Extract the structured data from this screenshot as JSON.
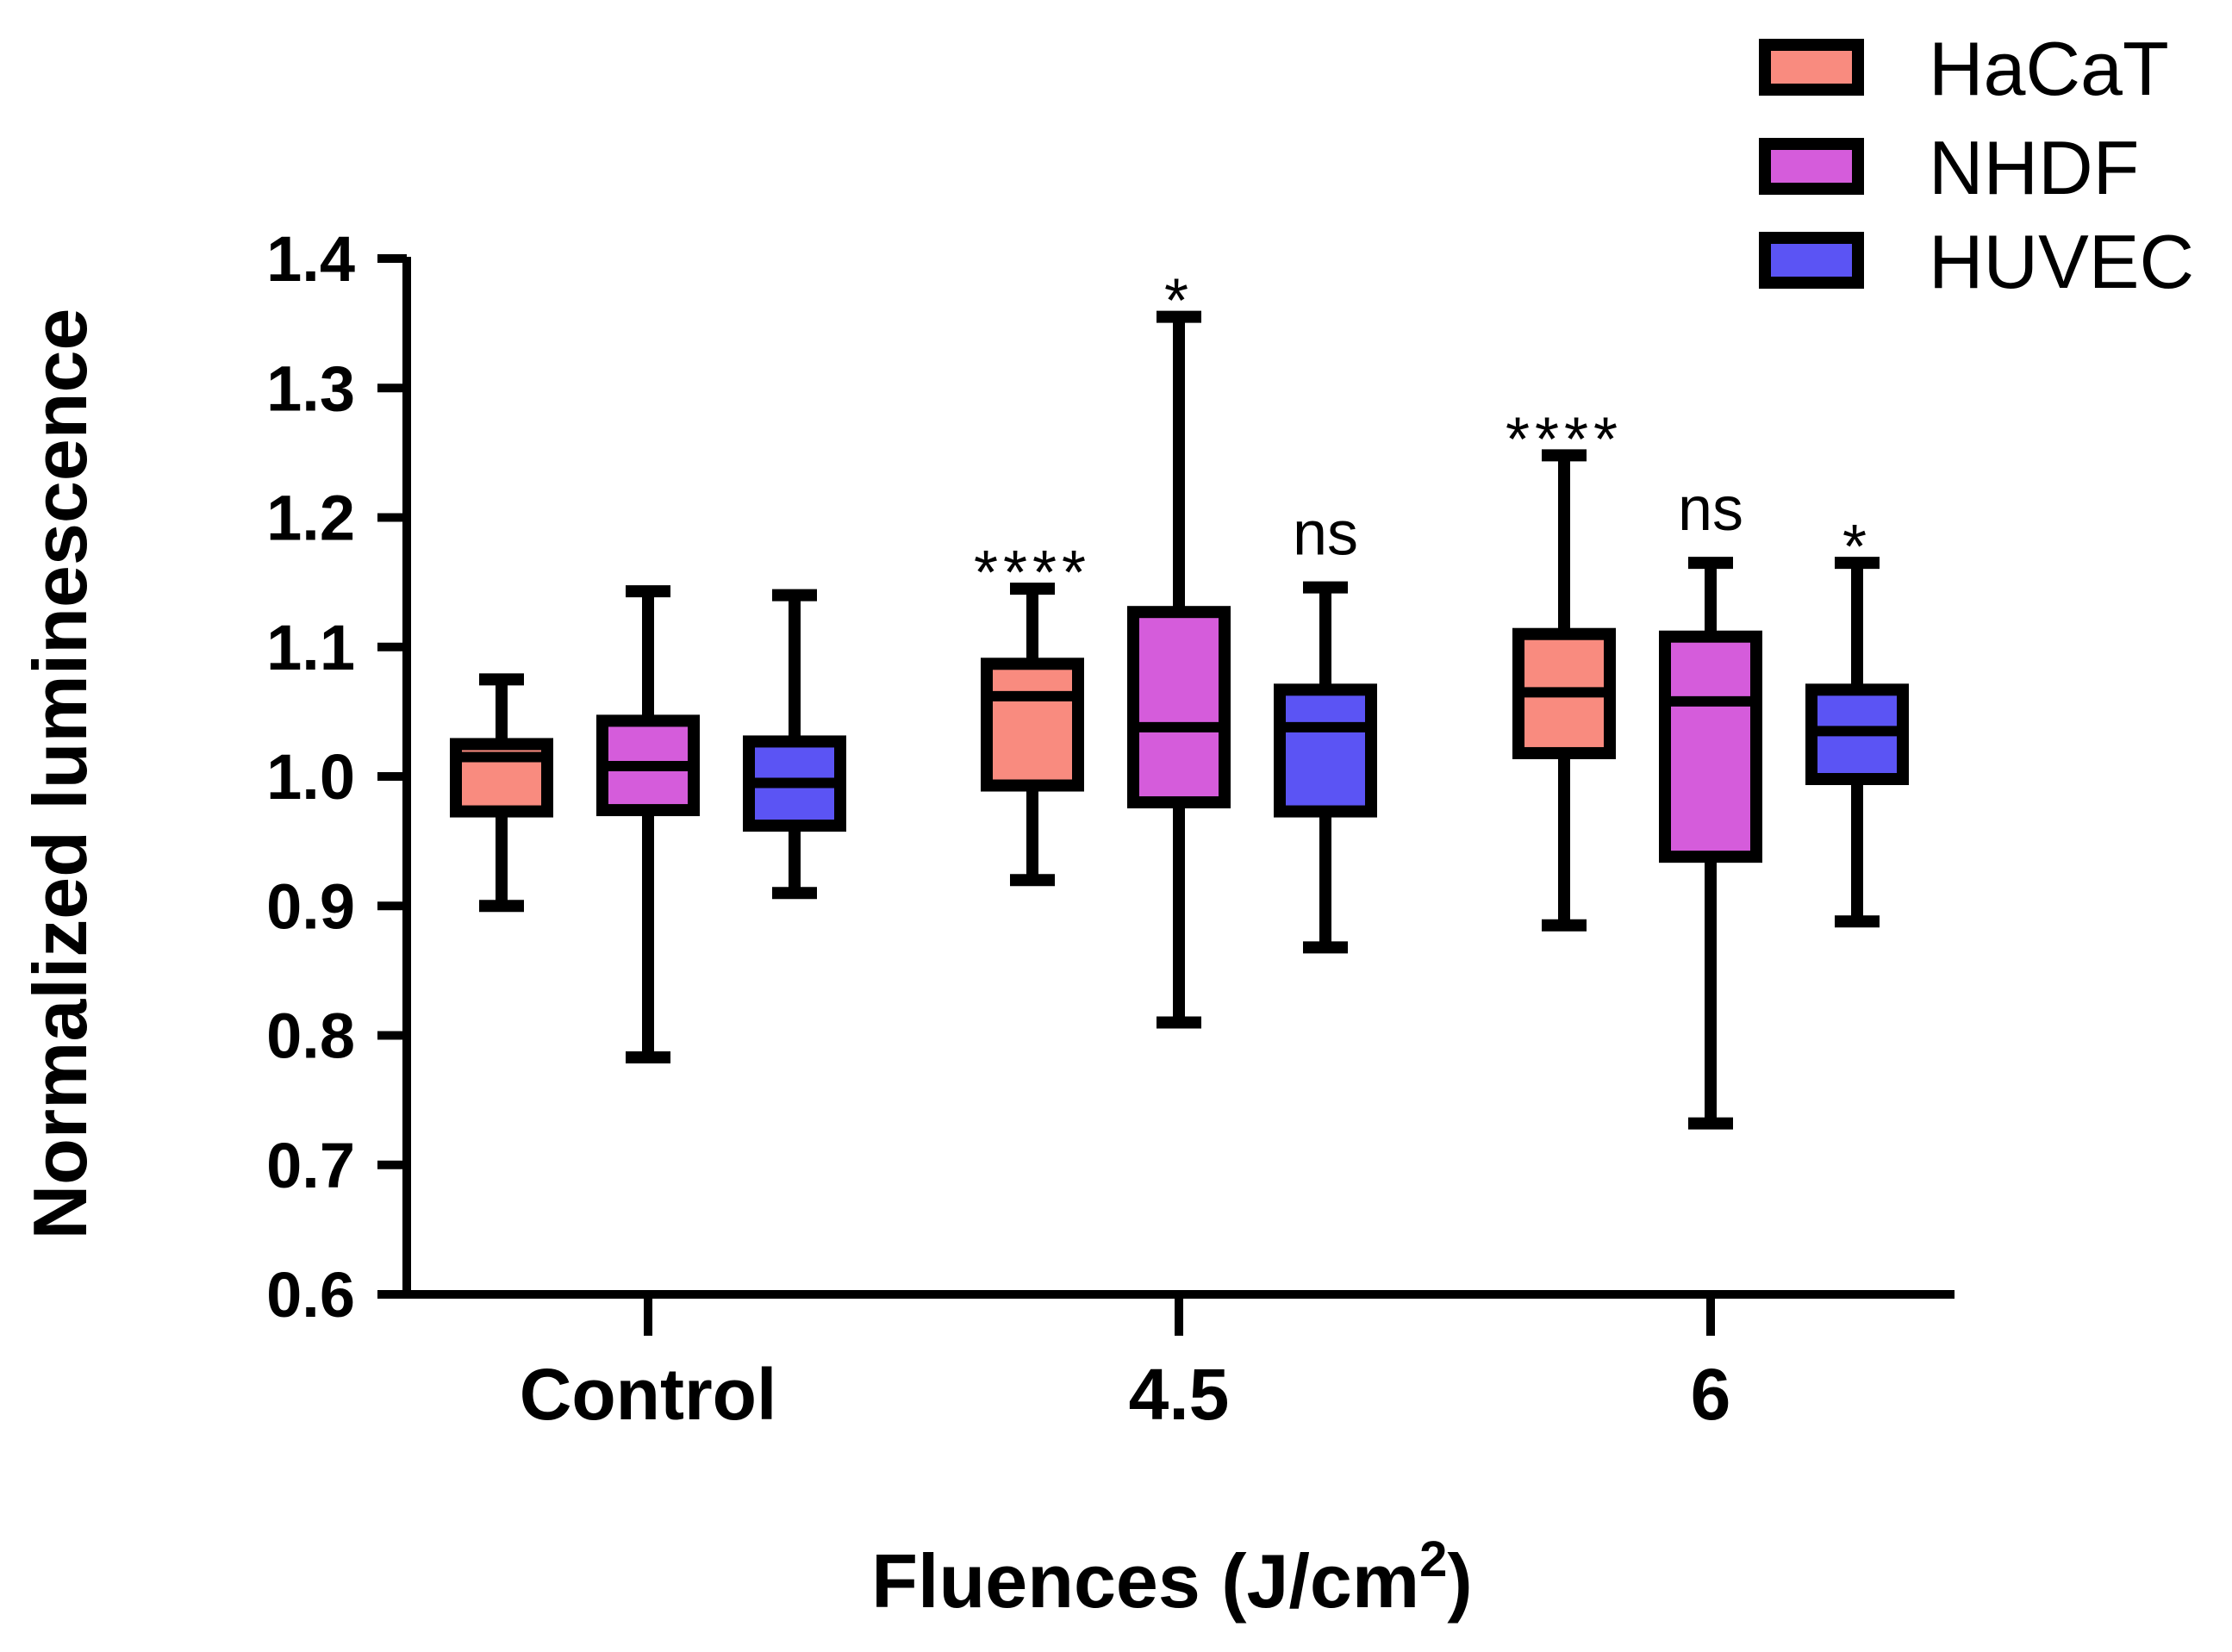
{
  "chart_data": {
    "type": "boxplot",
    "title": "",
    "xlabel": "Fluences (J/cm",
    "xlabel_sup": "2",
    "xlabel_close": ")",
    "ylabel": "Normalized luminescence",
    "ylim": [
      0.6,
      1.4
    ],
    "yticks": [
      "0.6",
      "0.7",
      "0.8",
      "0.9",
      "1.0",
      "1.1",
      "1.2",
      "1.3",
      "1.4"
    ],
    "categories": [
      "Control",
      "4.5",
      "6"
    ],
    "legend_position": "top-right",
    "series": [
      {
        "name": "HaCaT",
        "color": "#F98B7F",
        "boxes": [
          {
            "min": 0.9,
            "q1": 0.973,
            "median": 1.015,
            "q3": 1.025,
            "max": 1.075
          },
          {
            "min": 0.92,
            "q1": 0.993,
            "median": 1.062,
            "q3": 1.087,
            "max": 1.145
          },
          {
            "min": 0.885,
            "q1": 1.018,
            "median": 1.065,
            "q3": 1.11,
            "max": 1.248
          }
        ],
        "annotations": [
          "",
          "****",
          "****"
        ]
      },
      {
        "name": "NHDF",
        "color": "#D55CDB",
        "boxes": [
          {
            "min": 0.783,
            "q1": 0.974,
            "median": 1.008,
            "q3": 1.043,
            "max": 1.143
          },
          {
            "min": 0.81,
            "q1": 0.98,
            "median": 1.038,
            "q3": 1.127,
            "max": 1.355
          },
          {
            "min": 0.732,
            "q1": 0.938,
            "median": 1.058,
            "q3": 1.108,
            "max": 1.165
          }
        ],
        "annotations": [
          "",
          "*",
          "ns"
        ]
      },
      {
        "name": "HUVEC",
        "color": "#5B54F4",
        "boxes": [
          {
            "min": 0.91,
            "q1": 0.962,
            "median": 0.995,
            "q3": 1.027,
            "max": 1.14
          },
          {
            "min": 0.868,
            "q1": 0.973,
            "median": 1.038,
            "q3": 1.067,
            "max": 1.146
          },
          {
            "min": 0.888,
            "q1": 0.998,
            "median": 1.035,
            "q3": 1.067,
            "max": 1.165
          }
        ],
        "annotations": [
          "",
          "ns",
          "*"
        ]
      }
    ]
  }
}
